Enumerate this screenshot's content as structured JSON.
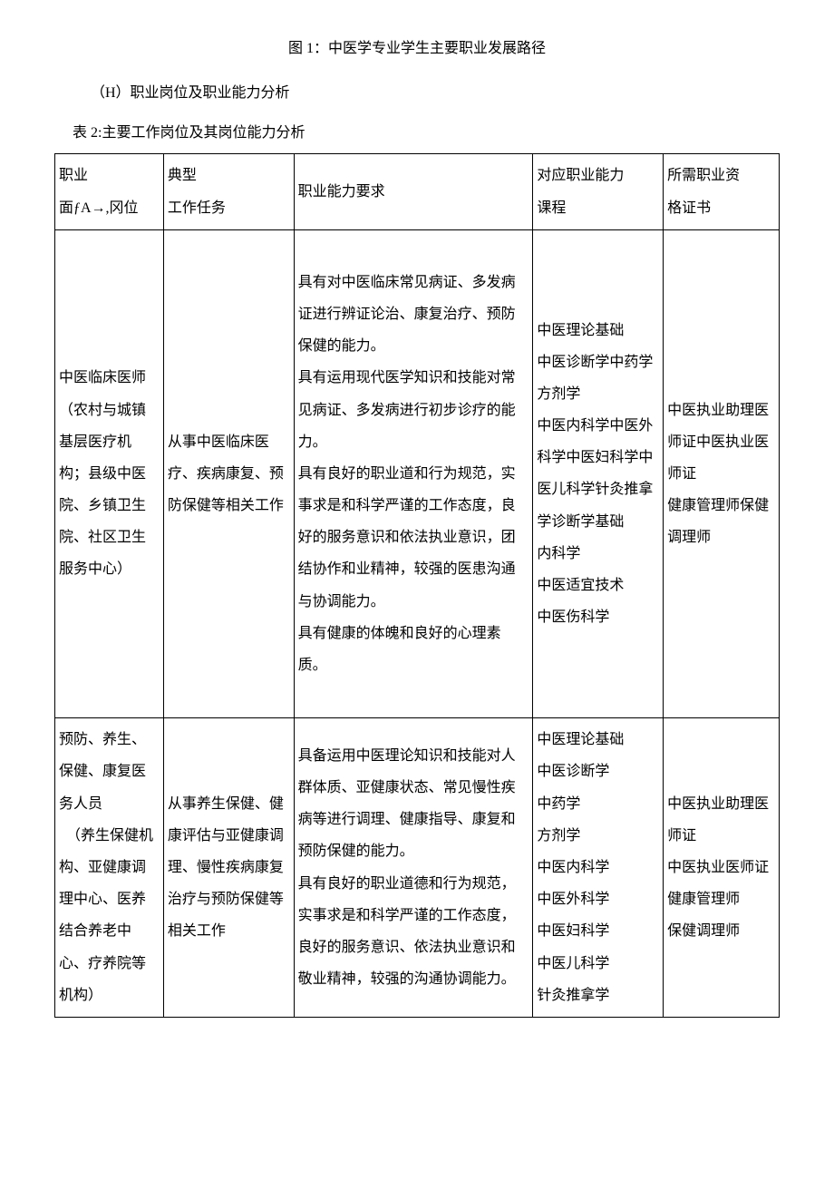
{
  "caption": "图 1：中医学专业学生主要职业发展路径",
  "sectionHeading": "（H）职业岗位及职业能力分析",
  "tableCaption": "表 2:主要工作岗位及其岗位能力分析",
  "table": {
    "headers": {
      "col1a": "职业",
      "col1b": "面ƒA→,冈位",
      "col2a": "典型",
      "col2b": "工作任务",
      "col3": "职业能力要求",
      "col4a": "对应职业能力",
      "col4b": "课程",
      "col5a": "所需职业资",
      "col5b": "格证书"
    },
    "row1": {
      "c1": "中医临床医师（农村与城镇基层医疗机构；县级中医院、乡镇卫生院、社区卫生服务中心）",
      "c2": "从事中医临床医疗、疾病康复、预防保健等相关工作",
      "c3": "具有对中医临床常见病证、多发病证进行辨证论治、康复治疗、预防保健的能力。\n具有运用现代医学知识和技能对常见病证、多发病进行初步诊疗的能力。\n具有良好的职业道和行为规范，实事求是和科学严谨的工作态度，良好的服务意识和依法执业意识，团结协作和业精神，较强的医患沟通与协调能力。\n具有健康的体魄和良好的心理素质。",
      "c4": "中医理论基础\n中医诊断学中药学方剂学\n中医内科学中医外科学中医妇科学中医儿科学针灸推拿学诊断学基础\n内科学\n中医适宜技术\n中医伤科学",
      "c5": "中医执业助理医师证中医执业医师证\n健康管理师保健调理师"
    },
    "row2": {
      "c1": "预防、养生、保健、康复医务人员\n　（养生保健机构、亚健康调理中心、医养结合养老中心、疗养院等机构）",
      "c2": "从事养生保健、健康评估与亚健康调理、慢性疾病康复治疗与预防保健等相关工作",
      "c3": "具备运用中医理论知识和技能对人群体质、亚健康状态、常见慢性疾病等进行调理、健康指导、康复和预防保健的能力。\n具有良好的职业道德和行为规范，实事求是和科学严谨的工作态度，良好的服务意识、依法执业意识和敬业精神，较强的沟通协调能力。",
      "c4": "中医理论基础\n中医诊断学\n中药学\n方剂学\n中医内科学\n中医外科学\n中医妇科学\n中医儿科学\n针灸推拿学",
      "c5": "中医执业助理医师证\n中医执业医师证\n健康管理师\n保健调理师"
    }
  },
  "styling": {
    "background_color": "#ffffff",
    "text_color": "#000000",
    "border_color": "#000000",
    "font_family": "SimSun",
    "body_fontsize": 16,
    "line_height": 1.8,
    "cell_line_height": 2.2,
    "col_widths_pct": [
      15,
      18,
      33,
      18,
      16
    ]
  }
}
